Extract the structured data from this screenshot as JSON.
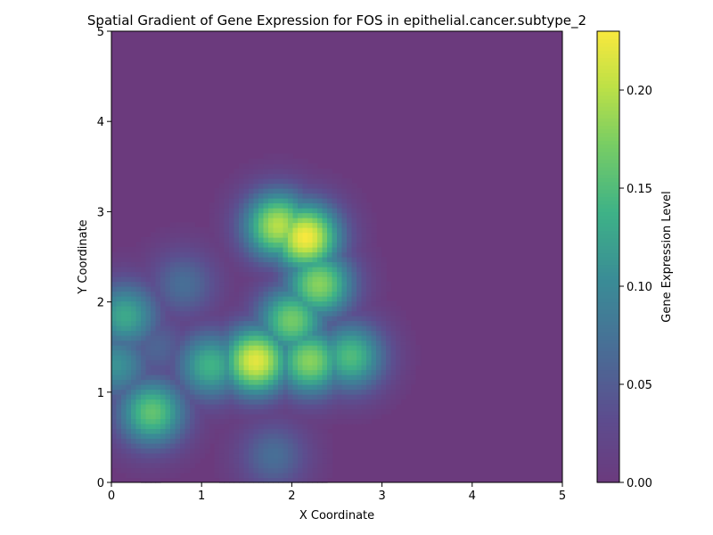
{
  "chart_data": {
    "type": "heatmap",
    "title": "Spatial Gradient of Gene Expression for FOS in epithelial.cancer.subtype_2",
    "xlabel": "X Coordinate",
    "ylabel": "Y Coordinate",
    "xlim": [
      0,
      5
    ],
    "ylim": [
      0,
      5
    ],
    "x_ticks": [
      0,
      1,
      2,
      3,
      4,
      5
    ],
    "y_ticks": [
      0,
      1,
      2,
      3,
      4,
      5
    ],
    "grid": false,
    "colormap": "viridis",
    "colorbar": {
      "label": "Gene Expression Level",
      "range": [
        0,
        0.23
      ],
      "ticks": [
        0.0,
        0.05,
        0.1,
        0.15,
        0.2
      ],
      "tick_labels": [
        "0.00",
        "0.05",
        "0.10",
        "0.15",
        "0.20"
      ]
    },
    "hotspots": [
      {
        "x": 2.15,
        "y": 2.72,
        "value": 0.23
      },
      {
        "x": 1.85,
        "y": 2.85,
        "value": 0.2
      },
      {
        "x": 1.6,
        "y": 1.35,
        "value": 0.22
      },
      {
        "x": 2.2,
        "y": 1.35,
        "value": 0.18
      },
      {
        "x": 2.65,
        "y": 1.4,
        "value": 0.15
      },
      {
        "x": 2.3,
        "y": 2.2,
        "value": 0.18
      },
      {
        "x": 2.0,
        "y": 1.8,
        "value": 0.17
      },
      {
        "x": 1.1,
        "y": 1.3,
        "value": 0.14
      },
      {
        "x": 0.45,
        "y": 0.78,
        "value": 0.16
      },
      {
        "x": 0.15,
        "y": 1.85,
        "value": 0.13
      },
      {
        "x": 0.05,
        "y": 1.3,
        "value": 0.11
      },
      {
        "x": 0.8,
        "y": 2.2,
        "value": 0.07
      },
      {
        "x": 1.8,
        "y": 0.3,
        "value": 0.07
      },
      {
        "x": 0.5,
        "y": 1.5,
        "value": 0.06
      }
    ]
  }
}
